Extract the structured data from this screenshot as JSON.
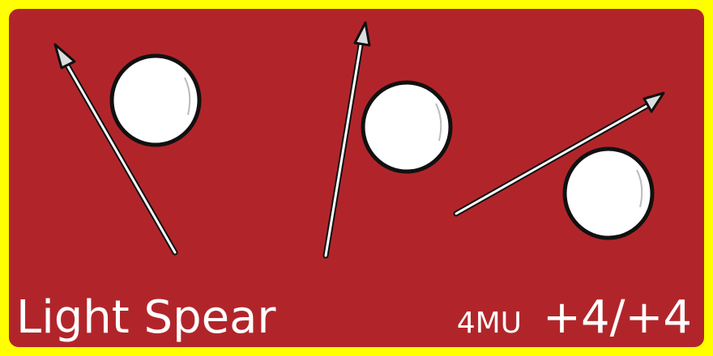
{
  "card": {
    "name": "Light Spear",
    "cost": "4MU",
    "modifier": "+4/+4",
    "colors": {
      "border": "#ffff00",
      "background": "#b1252a",
      "text": "#ffffff",
      "ball": "#ffffff",
      "spear": "#ffffff",
      "outline": "#111111"
    }
  },
  "art": {
    "spears": [
      {
        "name": "spear-icon"
      },
      {
        "name": "spear-icon"
      },
      {
        "name": "spear-icon"
      }
    ],
    "balls": [
      {
        "name": "ball-icon"
      },
      {
        "name": "ball-icon"
      },
      {
        "name": "ball-icon"
      }
    ]
  }
}
